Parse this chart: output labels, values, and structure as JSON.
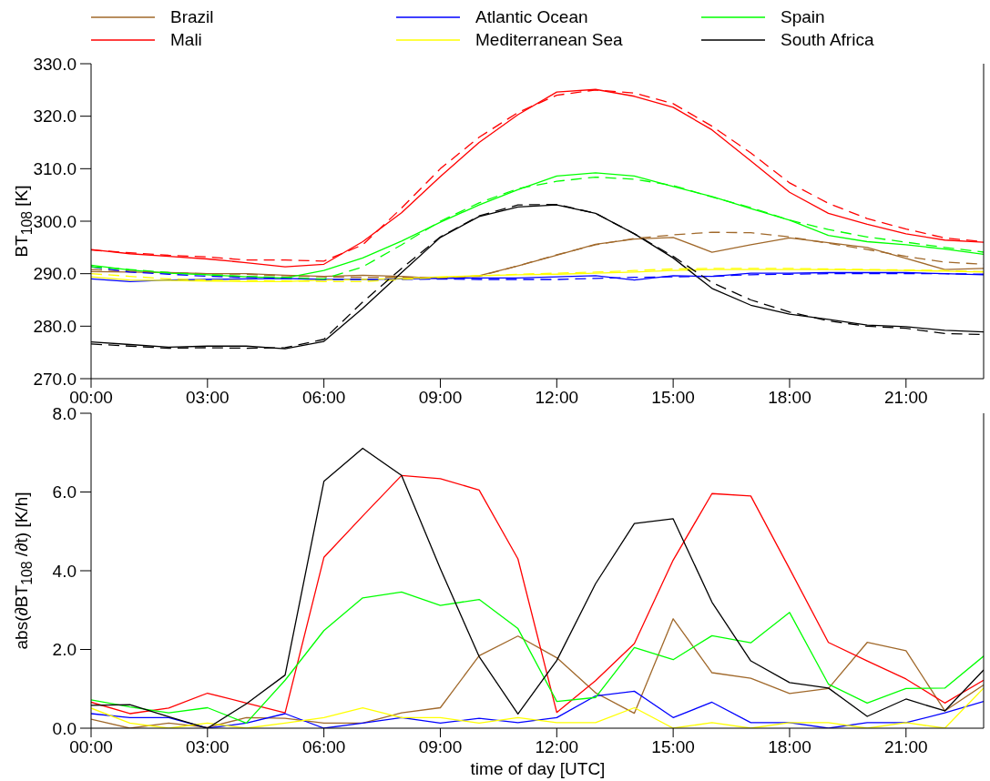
{
  "chart_data": [
    {
      "type": "line",
      "ylabel": "BT$_{108}$ [K]",
      "legend": "top",
      "x": [
        0,
        1,
        2,
        3,
        4,
        5,
        6,
        7,
        8,
        9,
        10,
        11,
        12,
        13,
        14,
        15,
        16,
        17,
        18,
        19,
        20,
        21,
        22,
        23
      ],
      "xlim": [
        0,
        23
      ],
      "xticks": [
        {
          "value": 0,
          "label": "00:00"
        },
        {
          "value": 3,
          "label": "03:00"
        },
        {
          "value": 6,
          "label": "06:00"
        },
        {
          "value": 9,
          "label": "09:00"
        },
        {
          "value": 12,
          "label": "12:00"
        },
        {
          "value": 15,
          "label": "15:00"
        },
        {
          "value": 18,
          "label": "18:00"
        },
        {
          "value": 21,
          "label": "21:00"
        }
      ],
      "ylim": [
        270,
        330
      ],
      "yticks": [
        {
          "value": 270,
          "label": "270.0"
        },
        {
          "value": 280,
          "label": "280.0"
        },
        {
          "value": 290,
          "label": "290.0"
        },
        {
          "value": 300,
          "label": "300.0"
        },
        {
          "value": 310,
          "label": "310.0"
        },
        {
          "value": 320,
          "label": "320.0"
        },
        {
          "value": 330,
          "label": "330.0"
        }
      ],
      "series": [
        {
          "name": "Brazil",
          "color": "#a0682a",
          "values": [
            290.4,
            290.3,
            290.2,
            290.0,
            290.0,
            289.7,
            289.5,
            289.7,
            289.5,
            289.1,
            289.6,
            291.5,
            293.5,
            295.6,
            296.6,
            296.9,
            294.1,
            295.5,
            296.8,
            295.9,
            295.0,
            292.9,
            290.8,
            291.0
          ]
        },
        {
          "name": "Mali",
          "color": "#ff0000",
          "values": [
            294.6,
            293.8,
            293.3,
            292.8,
            292.1,
            291.3,
            291.8,
            296.1,
            301.6,
            308.5,
            315.0,
            320.3,
            324.6,
            325.1,
            323.8,
            321.7,
            317.4,
            311.5,
            305.5,
            301.5,
            299.4,
            297.6,
            296.4,
            296.0
          ]
        },
        {
          "name": "Atlantic Ocean",
          "color": "#0000ff",
          "values": [
            289.0,
            288.5,
            288.8,
            288.9,
            289.0,
            289.1,
            288.9,
            288.9,
            289.0,
            289.1,
            289.2,
            289.2,
            289.4,
            289.6,
            288.8,
            289.6,
            289.5,
            290.1,
            290.1,
            290.2,
            290.2,
            290.2,
            290.0,
            289.8
          ]
        },
        {
          "name": "Mediterranean Sea",
          "color": "#ffff00",
          "values": [
            289.4,
            288.8,
            288.7,
            288.6,
            288.5,
            288.5,
            288.8,
            288.9,
            289.1,
            289.4,
            289.6,
            289.8,
            289.9,
            290.1,
            290.3,
            290.6,
            290.8,
            290.8,
            290.8,
            290.8,
            290.7,
            290.6,
            290.5,
            290.3
          ]
        },
        {
          "name": "Spain",
          "color": "#00ff00",
          "values": [
            291.6,
            290.7,
            290.1,
            289.8,
            289.4,
            289.2,
            290.6,
            293.0,
            296.2,
            299.8,
            303.1,
            306.0,
            308.6,
            309.2,
            308.6,
            306.6,
            304.7,
            302.4,
            300.2,
            297.3,
            296.1,
            295.5,
            294.7,
            293.7
          ]
        },
        {
          "name": "South Africa",
          "color": "#000000",
          "values": [
            277.0,
            276.5,
            276.0,
            276.2,
            276.2,
            275.7,
            277.1,
            283.4,
            290.2,
            296.9,
            300.9,
            302.7,
            303.1,
            301.5,
            297.6,
            293.0,
            287.2,
            284.0,
            282.3,
            281.3,
            280.2,
            279.9,
            279.2,
            278.9
          ]
        },
        {
          "color": "#a0682a",
          "line_style": "dashed",
          "values": [
            290.8,
            290.5,
            290.2,
            290.0,
            289.9,
            289.6,
            289.4,
            289.3,
            289.3,
            289.2,
            289.5,
            291.5,
            293.6,
            295.5,
            296.7,
            297.4,
            297.9,
            297.8,
            297.0,
            295.8,
            294.6,
            293.3,
            292.2,
            291.8
          ]
        },
        {
          "color": "#ff0000",
          "line_style": "dashed",
          "values": [
            294.5,
            294.0,
            293.5,
            293.2,
            292.6,
            292.6,
            292.4,
            295.5,
            302.5,
            310.0,
            316.0,
            320.7,
            324.0,
            325.0,
            324.4,
            322.4,
            318.1,
            313.0,
            307.3,
            303.4,
            300.5,
            298.5,
            296.8,
            296.1
          ]
        },
        {
          "color": "#0000ff",
          "line_style": "dashed",
          "values": [
            291.3,
            290.3,
            289.9,
            289.5,
            289.3,
            289.1,
            288.9,
            288.9,
            288.9,
            289.0,
            288.9,
            288.9,
            288.9,
            289.1,
            289.3,
            289.4,
            289.5,
            289.8,
            289.9,
            290.0,
            290.0,
            290.0,
            290.0,
            289.9
          ]
        },
        {
          "color": "#ffff00",
          "line_style": "dashed",
          "values": [
            290.0,
            289.5,
            289.0,
            288.8,
            288.7,
            288.6,
            288.5,
            288.5,
            288.9,
            289.3,
            289.6,
            289.9,
            290.1,
            290.3,
            290.6,
            290.9,
            291.0,
            291.0,
            291.0,
            290.9,
            290.8,
            290.7,
            290.6,
            290.4
          ]
        },
        {
          "color": "#00ff00",
          "line_style": "dashed",
          "values": [
            291.3,
            290.8,
            290.2,
            289.8,
            289.5,
            289.3,
            289.0,
            291.3,
            295.5,
            300.0,
            303.5,
            306.2,
            307.6,
            308.4,
            308.0,
            306.8,
            304.6,
            302.6,
            300.2,
            298.4,
            297.0,
            296.0,
            295.0,
            294.1
          ]
        },
        {
          "color": "#000000",
          "line_style": "dashed",
          "values": [
            276.6,
            276.2,
            275.8,
            275.9,
            275.8,
            275.9,
            277.5,
            284.6,
            291.0,
            297.0,
            301.0,
            303.1,
            303.2,
            301.5,
            297.6,
            293.3,
            288.3,
            285.0,
            282.7,
            281.0,
            280.0,
            279.6,
            278.6,
            278.4
          ]
        }
      ]
    },
    {
      "type": "line",
      "xlabel": "time of day [UTC]",
      "ylabel": "abs(∂BT$_{108}$ /∂t) [K/h]",
      "x": [
        0,
        1,
        2,
        3,
        4,
        5,
        6,
        7,
        8,
        9,
        10,
        11,
        12,
        13,
        14,
        15,
        16,
        17,
        18,
        19,
        20,
        21,
        22,
        23
      ],
      "xlim": [
        0,
        23
      ],
      "xticks": [
        {
          "value": 0,
          "label": "00:00"
        },
        {
          "value": 3,
          "label": "03:00"
        },
        {
          "value": 6,
          "label": "06:00"
        },
        {
          "value": 9,
          "label": "09:00"
        },
        {
          "value": 12,
          "label": "12:00"
        },
        {
          "value": 15,
          "label": "15:00"
        },
        {
          "value": 18,
          "label": "18:00"
        },
        {
          "value": 21,
          "label": "21:00"
        }
      ],
      "ylim": [
        0,
        8
      ],
      "yticks": [
        {
          "value": 0,
          "label": "0.0"
        },
        {
          "value": 2,
          "label": "2.0"
        },
        {
          "value": 4,
          "label": "4.0"
        },
        {
          "value": 6,
          "label": "6.0"
        },
        {
          "value": 8,
          "label": "8.0"
        }
      ],
      "series": [
        {
          "color": "#a0682a",
          "values": [
            0.23,
            0.0,
            0.13,
            0.02,
            0.27,
            0.25,
            0.13,
            0.13,
            0.39,
            0.52,
            1.84,
            2.34,
            1.79,
            0.9,
            0.38,
            2.78,
            1.41,
            1.27,
            0.88,
            1.01,
            2.18,
            1.97,
            0.44,
            1.1
          ]
        },
        {
          "color": "#ff0000",
          "values": [
            0.66,
            0.37,
            0.51,
            0.89,
            0.64,
            0.39,
            4.34,
            5.39,
            6.42,
            6.34,
            6.05,
            4.3,
            0.4,
            1.21,
            2.15,
            4.27,
            5.96,
            5.9,
            4.05,
            2.18,
            1.71,
            1.25,
            0.64,
            1.22
          ]
        },
        {
          "color": "#0000ff",
          "values": [
            0.37,
            0.27,
            0.27,
            0.0,
            0.13,
            0.37,
            0.0,
            0.13,
            0.27,
            0.13,
            0.25,
            0.14,
            0.27,
            0.82,
            0.94,
            0.27,
            0.66,
            0.14,
            0.14,
            0.0,
            0.14,
            0.14,
            0.39,
            0.68
          ]
        },
        {
          "color": "#ffff00",
          "values": [
            0.51,
            0.13,
            0.0,
            0.13,
            0.0,
            0.13,
            0.27,
            0.52,
            0.27,
            0.27,
            0.13,
            0.27,
            0.14,
            0.14,
            0.52,
            0.0,
            0.14,
            0.0,
            0.14,
            0.14,
            0.0,
            0.14,
            0.0,
            1.02
          ]
        },
        {
          "color": "#00ff00",
          "values": [
            0.72,
            0.54,
            0.39,
            0.52,
            0.13,
            1.22,
            2.48,
            3.31,
            3.46,
            3.12,
            3.27,
            2.53,
            0.68,
            0.78,
            2.05,
            1.74,
            2.35,
            2.17,
            2.94,
            1.12,
            0.64,
            1.01,
            1.02,
            1.83
          ]
        },
        {
          "color": "#000000",
          "values": [
            0.58,
            0.6,
            0.29,
            0.0,
            0.62,
            1.35,
            6.27,
            7.11,
            6.42,
            4.05,
            1.82,
            0.36,
            1.72,
            3.67,
            5.2,
            5.32,
            3.2,
            1.71,
            1.16,
            1.02,
            0.3,
            0.74,
            0.44,
            1.48
          ]
        }
      ]
    }
  ]
}
